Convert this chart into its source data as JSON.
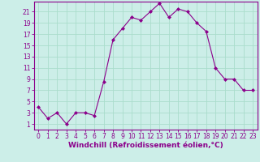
{
  "x": [
    0,
    1,
    2,
    3,
    4,
    5,
    6,
    7,
    8,
    9,
    10,
    11,
    12,
    13,
    14,
    15,
    16,
    17,
    18,
    19,
    20,
    21,
    22,
    23
  ],
  "y": [
    4,
    2,
    3,
    1,
    3,
    3,
    2.5,
    8.5,
    16,
    18,
    20,
    19.5,
    21,
    22.5,
    20,
    21.5,
    21,
    19,
    17.5,
    11,
    9,
    9,
    7,
    7
  ],
  "line_color": "#8b008b",
  "marker": "D",
  "marker_size": 2,
  "bg_color": "#cceee8",
  "grid_color": "#aaddcc",
  "xlabel": "Windchill (Refroidissement éolien,°C)",
  "xlabel_color": "#8b008b",
  "xlabel_fontsize": 6.5,
  "yticks": [
    1,
    3,
    5,
    7,
    9,
    11,
    13,
    15,
    17,
    19,
    21
  ],
  "xticks": [
    0,
    1,
    2,
    3,
    4,
    5,
    6,
    7,
    8,
    9,
    10,
    11,
    12,
    13,
    14,
    15,
    16,
    17,
    18,
    19,
    20,
    21,
    22,
    23
  ],
  "ylim": [
    0,
    22.8
  ],
  "xlim": [
    -0.5,
    23.5
  ],
  "tick_color": "#8b008b",
  "tick_fontsize": 5.5,
  "border_color": "#8b008b",
  "spine_color": "#8b008b"
}
